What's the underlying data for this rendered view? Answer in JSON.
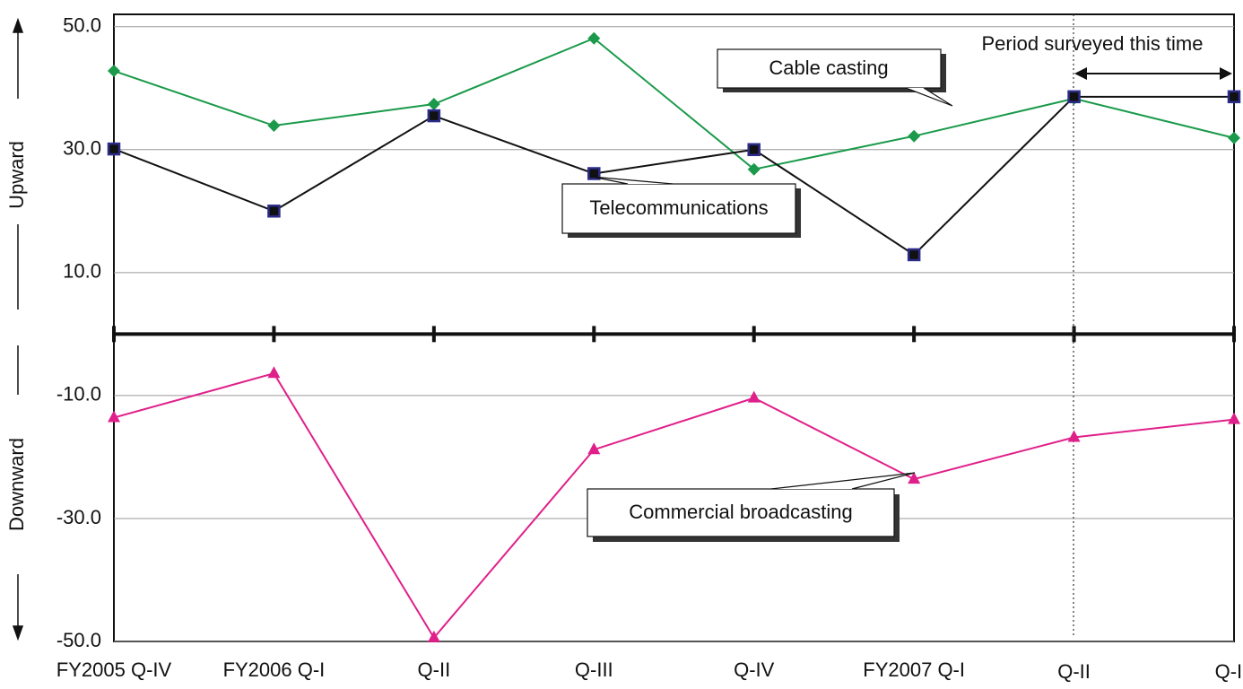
{
  "chart_data": {
    "type": "line",
    "categories": [
      "FY2005 Q-IV",
      "FY2006 Q-I",
      "Q-II",
      "Q-III",
      "Q-IV",
      "FY2007 Q-I",
      "Q-II",
      "Q-III"
    ],
    "series": [
      {
        "name": "Cable casting",
        "color": "#1a9a4a",
        "marker": "diamond",
        "values": [
          42.8,
          33.9,
          37.4,
          48.1,
          26.8,
          32.2,
          38.3,
          31.9
        ]
      },
      {
        "name": "Telecommunications",
        "color": "#111111",
        "marker": "square",
        "values": [
          30.1,
          20.0,
          35.5,
          26.1,
          30.0,
          12.9,
          38.6,
          38.6
        ]
      },
      {
        "name": "Commercial broadcasting",
        "color": "#e0208a",
        "marker": "triangle",
        "values": [
          -13.6,
          -6.4,
          -49.4,
          -18.8,
          -10.4,
          -23.6,
          -16.8,
          -13.9
        ]
      }
    ],
    "ylim": [
      -50,
      52
    ],
    "yticks": [
      {
        "value": 50,
        "label": "50.0"
      },
      {
        "value": 30,
        "label": "30.0"
      },
      {
        "value": 10,
        "label": "10.0"
      },
      {
        "value": -10,
        "label": "-10.0"
      },
      {
        "value": -30,
        "label": "-30.0"
      },
      {
        "value": -50,
        "label": "-50.0"
      }
    ],
    "grid": true,
    "upper_label": "Upward",
    "lower_label": "Downward",
    "annotation": "Period surveyed this time"
  }
}
